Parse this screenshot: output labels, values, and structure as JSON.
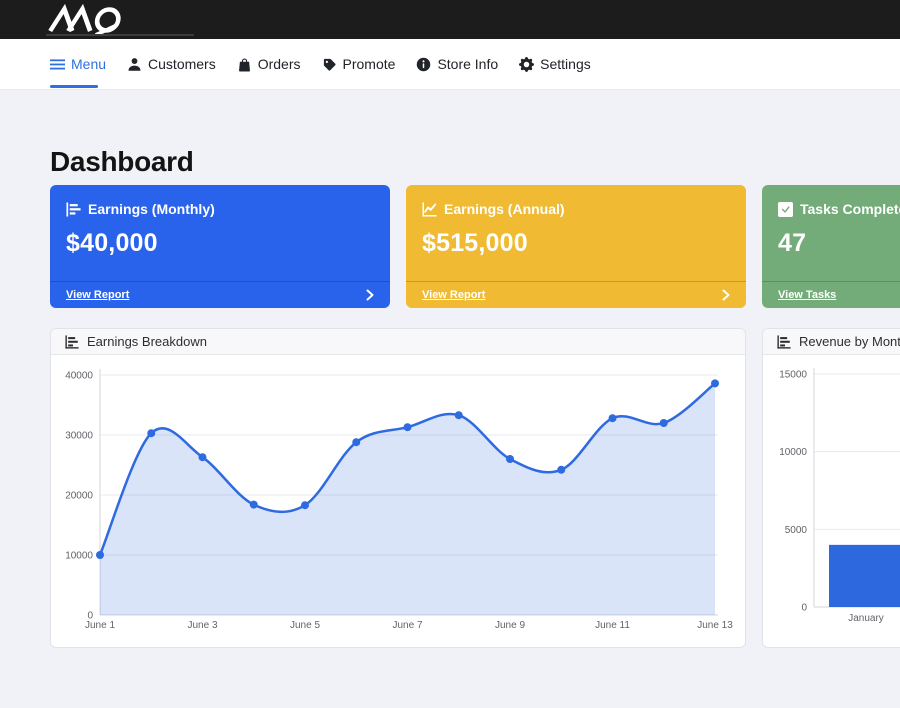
{
  "topbar": {
    "logo_text": "MQ"
  },
  "nav": {
    "active_color": "#2f6fe4",
    "items": [
      {
        "label": "Menu",
        "icon": "menu-hamburger-icon",
        "active": true
      },
      {
        "label": "Customers",
        "icon": "person-icon",
        "active": false
      },
      {
        "label": "Orders",
        "icon": "bag-icon",
        "active": false
      },
      {
        "label": "Promote",
        "icon": "tag-icon",
        "active": false
      },
      {
        "label": "Store Info",
        "icon": "info-icon",
        "active": false
      },
      {
        "label": "Settings",
        "icon": "gear-icon",
        "active": false
      }
    ]
  },
  "page_title": "Dashboard",
  "stat_cards": [
    {
      "title": "Earnings (Monthly)",
      "value": "$40,000",
      "footer_label": "View Report",
      "color": "#2a63eb",
      "icon": "bar-chart-icon"
    },
    {
      "title": "Earnings (Annual)",
      "value": "$515,000",
      "footer_label": "View Report",
      "color": "#f0bb33",
      "icon": "line-chart-icon"
    },
    {
      "title": "Tasks Completed",
      "value": "47",
      "footer_label": "View Tasks",
      "color": "#73ac79",
      "icon": "check-square-icon"
    }
  ],
  "chart_data": [
    {
      "type": "area",
      "title": "Earnings Breakdown",
      "x": [
        "June 1",
        "June 2",
        "June 3",
        "June 4",
        "June 5",
        "June 6",
        "June 7",
        "June 8",
        "June 9",
        "June 10",
        "June 11",
        "June 12",
        "June 13"
      ],
      "values": [
        10000,
        30300,
        26300,
        18400,
        18300,
        28800,
        31300,
        33300,
        26000,
        24200,
        32800,
        32000,
        38600
      ],
      "ylim": [
        0,
        40000
      ],
      "yticks": [
        0,
        10000,
        20000,
        30000,
        40000
      ],
      "xtick_every": 2,
      "line_color": "#2e6ae0",
      "fill_color": "rgba(46,106,224,0.18)",
      "grid": true,
      "legend": "none"
    },
    {
      "type": "bar",
      "title": "Revenue by Month",
      "categories": [
        "January"
      ],
      "values": [
        4000
      ],
      "ylim": [
        0,
        15000
      ],
      "yticks": [
        0,
        5000,
        10000,
        15000
      ],
      "bar_color": "#2d68de",
      "grid": true,
      "legend": "none"
    }
  ]
}
